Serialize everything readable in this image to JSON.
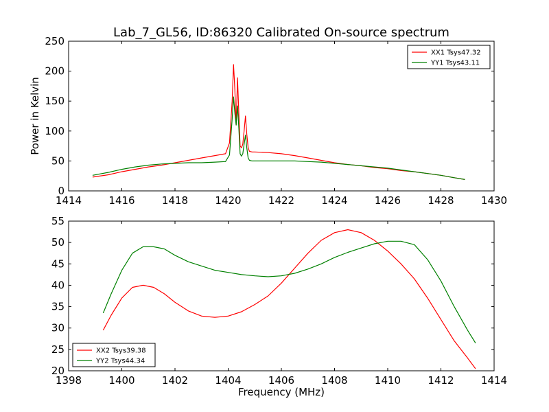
{
  "chart_data": [
    {
      "type": "line",
      "title": "Lab_7_GL56, ID:86320 Calibrated On-source spectrum",
      "xlabel": "",
      "ylabel": "Power in Kelvin",
      "xlim": [
        1414,
        1430
      ],
      "ylim": [
        0,
        250
      ],
      "xticks": [
        "1414",
        "1416",
        "1418",
        "1420",
        "1422",
        "1424",
        "1426",
        "1428",
        "1430"
      ],
      "yticks": [
        "0",
        "50",
        "100",
        "150",
        "200",
        "250"
      ],
      "legend_position": "top-right",
      "grid": false,
      "series": [
        {
          "name": "XX1 Tsys47.32",
          "color": "#ff0000",
          "x": [
            1414.9,
            1415.5,
            1416,
            1416.5,
            1417,
            1417.5,
            1418,
            1418.5,
            1419,
            1419.5,
            1419.9,
            1420.05,
            1420.15,
            1420.2,
            1420.25,
            1420.3,
            1420.35,
            1420.4,
            1420.45,
            1420.5,
            1420.55,
            1420.6,
            1420.65,
            1420.7,
            1420.75,
            1420.8,
            1420.9,
            1421,
            1421.5,
            1422,
            1422.5,
            1423,
            1423.5,
            1424,
            1424.5,
            1425,
            1425.5,
            1426,
            1426.5,
            1427,
            1427.5,
            1428,
            1428.5,
            1428.9
          ],
          "values": [
            23,
            27,
            32,
            36,
            40,
            43,
            47,
            51,
            55,
            59,
            62,
            80,
            150,
            211,
            170,
            110,
            189,
            130,
            75,
            72,
            78,
            100,
            125,
            95,
            72,
            66,
            65,
            65,
            64,
            62,
            59,
            55,
            51,
            47,
            44,
            42,
            39,
            37,
            34,
            32,
            29,
            26,
            22,
            19
          ]
        },
        {
          "name": "YY1 Tsys43.11",
          "color": "#008000",
          "x": [
            1414.9,
            1415.5,
            1416,
            1416.5,
            1417,
            1417.5,
            1418,
            1418.5,
            1419,
            1419.5,
            1419.9,
            1420.05,
            1420.15,
            1420.2,
            1420.25,
            1420.3,
            1420.35,
            1420.4,
            1420.45,
            1420.5,
            1420.55,
            1420.6,
            1420.65,
            1420.7,
            1420.75,
            1420.8,
            1420.9,
            1421,
            1421.5,
            1422,
            1422.5,
            1423,
            1423.5,
            1424,
            1424.5,
            1425,
            1425.5,
            1426,
            1426.5,
            1427,
            1427.5,
            1428,
            1428.5,
            1428.9
          ],
          "values": [
            26,
            31,
            36,
            40,
            43,
            45,
            46,
            47,
            47,
            48,
            49,
            60,
            120,
            157,
            130,
            110,
            142,
            105,
            62,
            58,
            62,
            78,
            93,
            72,
            55,
            51,
            50,
            50,
            50,
            50,
            50,
            49,
            48,
            46,
            44,
            42,
            40,
            38,
            35,
            32,
            29,
            26,
            22,
            19
          ]
        }
      ]
    },
    {
      "type": "line",
      "title": "",
      "xlabel": "Frequency (MHz)",
      "ylabel": "",
      "xlim": [
        1398,
        1414
      ],
      "ylim": [
        20,
        55
      ],
      "xticks": [
        "1398",
        "1400",
        "1402",
        "1404",
        "1406",
        "1408",
        "1410",
        "1412",
        "1414"
      ],
      "yticks": [
        "20",
        "25",
        "30",
        "35",
        "40",
        "45",
        "50",
        "55"
      ],
      "legend_position": "bottom-left",
      "grid": false,
      "series": [
        {
          "name": "XX2 Tsys39.38",
          "color": "#ff0000",
          "x": [
            1399.3,
            1399.6,
            1400,
            1400.4,
            1400.8,
            1401.2,
            1401.6,
            1402,
            1402.5,
            1403,
            1403.5,
            1404,
            1404.5,
            1405,
            1405.5,
            1406,
            1406.5,
            1407,
            1407.5,
            1408,
            1408.5,
            1409,
            1409.5,
            1410,
            1410.5,
            1411,
            1411.5,
            1412,
            1412.5,
            1413,
            1413.3
          ],
          "values": [
            29.5,
            33,
            37,
            39.5,
            40,
            39.5,
            38,
            36,
            34,
            32.8,
            32.5,
            32.8,
            33.8,
            35.5,
            37.5,
            40.5,
            44,
            47.5,
            50.5,
            52.3,
            53,
            52.3,
            50.5,
            48,
            45,
            41.5,
            37,
            32,
            27,
            23,
            20.5
          ]
        },
        {
          "name": "YY2 Tsys44.34",
          "color": "#008000",
          "x": [
            1399.3,
            1399.6,
            1400,
            1400.4,
            1400.8,
            1401.2,
            1401.6,
            1402,
            1402.5,
            1403,
            1403.5,
            1404,
            1404.5,
            1405,
            1405.5,
            1406,
            1406.5,
            1407,
            1407.5,
            1408,
            1408.5,
            1409,
            1409.5,
            1410,
            1410.5,
            1411,
            1411.5,
            1412,
            1412.5,
            1413,
            1413.3
          ],
          "values": [
            33.5,
            38,
            43.5,
            47.5,
            49,
            49,
            48.5,
            47,
            45.5,
            44.5,
            43.5,
            43,
            42.5,
            42.2,
            42,
            42.2,
            42.8,
            43.8,
            45,
            46.5,
            47.7,
            48.7,
            49.7,
            50.3,
            50.3,
            49.5,
            46,
            41,
            35,
            29.5,
            26.5
          ]
        }
      ]
    }
  ]
}
